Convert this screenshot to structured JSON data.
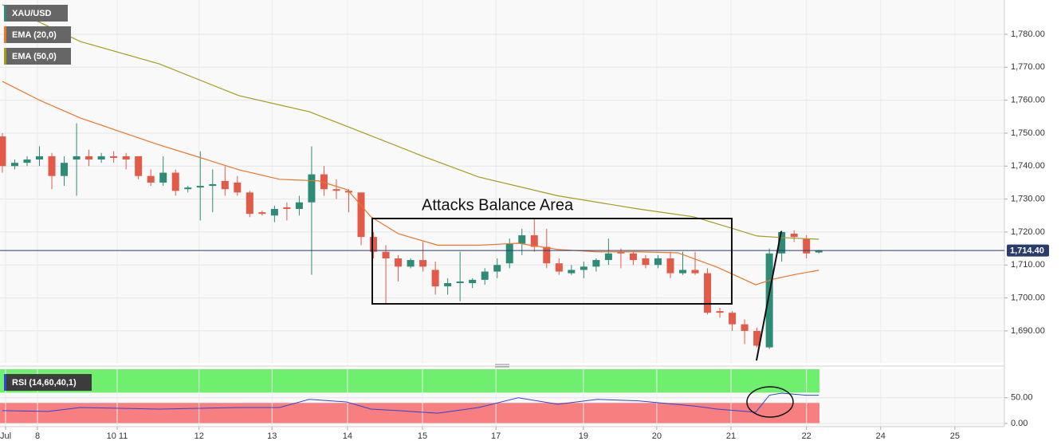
{
  "chart_data": [
    {
      "type": "candlestick",
      "title": "XAU/USD",
      "up_color": "#2e8b75",
      "down_color": "#e25a48",
      "x": [
        0,
        1,
        2,
        3,
        4,
        5,
        6,
        7,
        8,
        9,
        10,
        11,
        12,
        13,
        14,
        15,
        16,
        17,
        18,
        19,
        20,
        21,
        22,
        23,
        24,
        25,
        26,
        27,
        28,
        29,
        30,
        31,
        32,
        33,
        34,
        35,
        36,
        37,
        38,
        39,
        40,
        41,
        42,
        43,
        44,
        45,
        46,
        47,
        48,
        49,
        50,
        51,
        52,
        53,
        54,
        55,
        56,
        57,
        58,
        59,
        60,
        61,
        62,
        63,
        64,
        65,
        66
      ],
      "open": [
        1749,
        1740,
        1741,
        1742,
        1743,
        1737,
        1742,
        1743,
        1742,
        1743,
        1743,
        1743,
        1737,
        1735,
        1738,
        1733,
        1733.5,
        1734,
        1735.5,
        1735,
        1732,
        1726,
        1725,
        1727.5,
        1727,
        1729,
        1737.5,
        1733,
        1732.5,
        1732,
        1718.5,
        1714,
        1712,
        1709.5,
        1711.5,
        1708.5,
        1703.5,
        1704.5,
        1704.5,
        1705.5,
        1708,
        1710.5,
        1716.5,
        1719,
        1715.5,
        1710.5,
        1707.5,
        1708.5,
        1709.5,
        1711.5,
        1714,
        1713.5,
        1712,
        1710,
        1712,
        1707.5,
        1708.5,
        1707.5,
        1696,
        1695.5,
        1692,
        1690,
        1685,
        1713.5,
        1719.5,
        1718,
        1713.8
      ],
      "high": [
        1750,
        1742,
        1743,
        1746,
        1744,
        1743,
        1753,
        1745,
        1744,
        1744.5,
        1744,
        1743,
        1739,
        1743,
        1739,
        1734,
        1744.5,
        1739,
        1740,
        1737,
        1732.5,
        1726.5,
        1728,
        1729,
        1731,
        1746,
        1740,
        1736,
        1733,
        1732,
        1720,
        1716,
        1713,
        1712,
        1717,
        1711,
        1706,
        1714,
        1706,
        1709,
        1712,
        1718,
        1721,
        1724,
        1721,
        1712,
        1710,
        1711,
        1712,
        1718,
        1715,
        1714,
        1713,
        1713,
        1714,
        1714,
        1714,
        1709,
        1697,
        1696,
        1693.5,
        1691,
        1715,
        1720.5,
        1720.5,
        1719,
        1714.5
      ],
      "low": [
        1738,
        1739,
        1740,
        1740,
        1733,
        1734,
        1731,
        1740,
        1741,
        1741,
        1739,
        1736,
        1734,
        1734,
        1731,
        1732,
        1723.5,
        1726,
        1731,
        1731,
        1724.5,
        1725,
        1723,
        1723.5,
        1725,
        1707,
        1731,
        1730,
        1726,
        1716,
        1712,
        1698,
        1705,
        1709,
        1708,
        1701,
        1701,
        1699,
        1703,
        1704,
        1706,
        1709,
        1713,
        1714,
        1709,
        1707,
        1707,
        1706,
        1708,
        1710,
        1709,
        1710,
        1709,
        1709,
        1706,
        1707,
        1707,
        1695,
        1694,
        1690,
        1686,
        1685,
        1684.5,
        1711,
        1717,
        1712,
        1713.5
      ],
      "close": [
        1740,
        1741,
        1742,
        1743,
        1737,
        1741,
        1743,
        1742,
        1743,
        1742.5,
        1742,
        1737,
        1735,
        1738,
        1732.5,
        1733.5,
        1734,
        1734.5,
        1733,
        1732,
        1725.5,
        1725.5,
        1727,
        1727,
        1729,
        1737.5,
        1733,
        1732.5,
        1732,
        1718.5,
        1714,
        1712,
        1709.5,
        1711.5,
        1709.5,
        1703.5,
        1704.5,
        1705,
        1705.5,
        1708,
        1710,
        1716.5,
        1719,
        1715.5,
        1710.5,
        1708,
        1708.5,
        1709.5,
        1711.5,
        1713.5,
        1713.5,
        1711.5,
        1710,
        1712,
        1707.5,
        1708.5,
        1707.5,
        1695.5,
        1695.5,
        1692,
        1690,
        1685.5,
        1713.5,
        1720,
        1718.5,
        1713.5,
        1714.4
      ],
      "series": [
        {
          "name": "EMA (20,0)",
          "color": "#e8762c",
          "x": [
            0,
            3,
            6.3,
            9.5,
            12.7,
            15.9,
            19.1,
            22.4,
            25.6,
            27.9,
            29.8,
            32,
            35.2,
            38.5,
            41.7,
            44.9,
            48.1,
            51.4,
            54.6,
            57.8,
            60.9,
            62.3,
            64.2,
            66
          ],
          "values": [
            1765.7,
            1760,
            1754.6,
            1750.5,
            1746.4,
            1742.7,
            1738.9,
            1736,
            1735.5,
            1732.8,
            1724.6,
            1719.5,
            1716,
            1716,
            1716.6,
            1714.7,
            1714,
            1714,
            1713.7,
            1709.3,
            1704,
            1705.7,
            1707.2,
            1708.4
          ]
        },
        {
          "name": "EMA (50,0)",
          "color": "#a59c1e",
          "x": [
            0,
            6.3,
            12.7,
            19.1,
            24.8,
            27.9,
            34,
            38.5,
            44.9,
            51.4,
            55.9,
            59.1,
            61,
            63,
            66
          ],
          "values": [
            1789,
            1777.8,
            1771,
            1761.4,
            1756.5,
            1752,
            1743,
            1736.7,
            1731,
            1727,
            1724.6,
            1721,
            1718.8,
            1718.3,
            1717.8
          ]
        }
      ],
      "last_price": {
        "value": 1714.4,
        "label": "1,714.40"
      },
      "annotation": "Attacks Balance Area",
      "xlim": [
        -0.19,
        81
      ],
      "xticks": [
        {
          "value": 0.26,
          "label": "Jul"
        },
        {
          "value": 2.84,
          "label": "8"
        },
        {
          "value": 9.28,
          "label": "10 11"
        },
        {
          "value": 15.9,
          "label": "12"
        },
        {
          "value": 21.8,
          "label": "13"
        },
        {
          "value": 27.9,
          "label": "14"
        },
        {
          "value": 33.96,
          "label": "15"
        },
        {
          "value": 39.9,
          "label": "17"
        },
        {
          "value": 46.97,
          "label": "19"
        },
        {
          "value": 52.9,
          "label": "20"
        },
        {
          "value": 58.9,
          "label": "21"
        },
        {
          "value": 65.0,
          "label": "22"
        },
        {
          "value": 71.0,
          "label": "24"
        },
        {
          "value": 77.0,
          "label": "25"
        }
      ],
      "ylim": [
        1680.3,
        1790.4
      ],
      "yticks": [
        {
          "value": 1690,
          "label": "1,690.00"
        },
        {
          "value": 1700,
          "label": "1,700.00"
        },
        {
          "value": 1710,
          "label": "1,710.00"
        },
        {
          "value": 1720,
          "label": "1,720.00"
        },
        {
          "value": 1730,
          "label": "1,730.00"
        },
        {
          "value": 1740,
          "label": "1,740.00"
        },
        {
          "value": 1750,
          "label": "1,750.00"
        },
        {
          "value": 1760,
          "label": "1,760.00"
        },
        {
          "value": 1770,
          "label": "1,770.00"
        },
        {
          "value": 1780,
          "label": "1,780.00"
        }
      ],
      "grid": true
    },
    {
      "type": "line",
      "series": [
        {
          "name": "RSI (14,60,40,1)",
          "color": "#2f44d8",
          "x": [
            0,
            3.7,
            6.3,
            12.7,
            19.1,
            22.4,
            24.8,
            27.8,
            29.8,
            32,
            35.2,
            38.5,
            41.7,
            44.9,
            48.1,
            51.4,
            55.9,
            57.8,
            60.9,
            62,
            63,
            65,
            66
          ],
          "values": [
            25,
            23.4,
            31,
            28,
            31,
            31,
            47,
            42,
            28,
            25,
            20,
            31,
            50,
            37.5,
            47,
            44,
            34,
            28,
            22,
            55,
            59,
            55,
            55
          ]
        }
      ],
      "upper": 60,
      "lower": 40,
      "upper_color": "#6ef06e",
      "lower_color": "#f77f7f",
      "ylim": [
        0,
        104
      ],
      "yticks": [
        {
          "value": 0,
          "label": "0.00"
        },
        {
          "value": 50,
          "label": "50.00"
        }
      ],
      "grid": true
    }
  ]
}
